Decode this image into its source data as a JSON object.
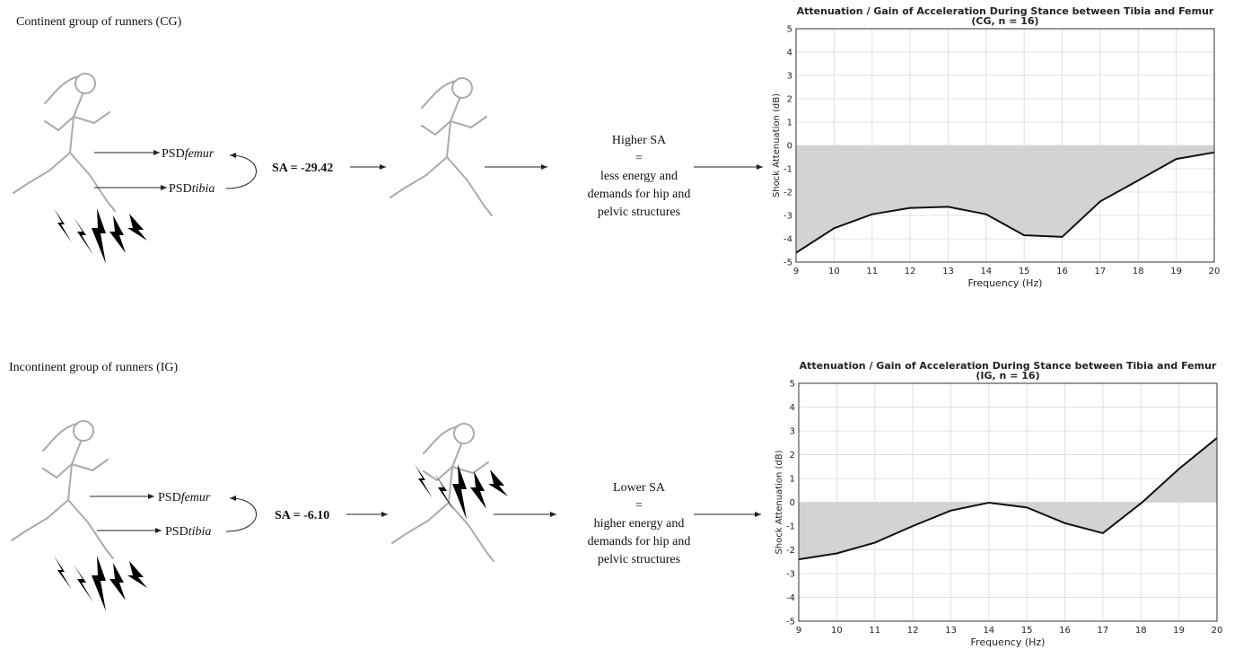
{
  "panels": [
    {
      "group_label": "Continent group of runners (CG)",
      "psd_top": [
        "PSD",
        "femur"
      ],
      "psd_bottom": [
        "PSD",
        "tibia"
      ],
      "sa": "SA = -29.42",
      "outcome": [
        "Higher SA",
        "=",
        "less energy and",
        "demands for hip and",
        "pelvic structures"
      ]
    },
    {
      "group_label": "Incontinent group of runners (IG)",
      "psd_top": [
        "PSD",
        "femur"
      ],
      "psd_bottom": [
        "PSD",
        "tibia"
      ],
      "sa": "SA = -6.10",
      "outcome": [
        "Lower SA",
        "=",
        "higher energy and",
        "demands for hip and",
        "pelvic structures"
      ]
    }
  ],
  "chart_data": [
    {
      "type": "area",
      "title": "Attenuation / Gain of Acceleration During Stance between Tibia and Femur",
      "subtitle": "(CG, n = 16)",
      "x_label": "Frequency (Hz)",
      "y_label": "Shock Attenuation (dB)",
      "x": [
        9,
        10,
        11,
        12,
        13,
        14,
        15,
        16,
        17,
        18,
        19,
        20
      ],
      "values": [
        -4.6,
        -3.55,
        -2.95,
        -2.68,
        -2.63,
        -2.95,
        -3.85,
        -3.92,
        -2.4,
        -1.5,
        -0.58,
        -0.3
      ],
      "color": "#111111",
      "fill_color": "#d3d3d3",
      "xlim": [
        9,
        20
      ],
      "xticks": [
        9,
        10,
        11,
        12,
        13,
        14,
        15,
        16,
        17,
        18,
        19,
        20
      ],
      "ylim": [
        -5,
        5
      ],
      "yticks": [
        -5,
        -4,
        -3,
        -2,
        -1,
        0,
        1,
        2,
        3,
        4,
        5
      ],
      "grid": true
    },
    {
      "type": "area",
      "title": "Attenuation / Gain of Acceleration During Stance between Tibia and Femur",
      "subtitle": "(IG, n = 16)",
      "x_label": "Frequency (Hz)",
      "y_label": "Shock Attenuation (dB)",
      "x": [
        9,
        10,
        11,
        12,
        13,
        14,
        15,
        16,
        17,
        18,
        19,
        20
      ],
      "values": [
        -2.4,
        -2.15,
        -1.7,
        -1.0,
        -0.35,
        -0.02,
        -0.22,
        -0.88,
        -1.3,
        -0.05,
        1.4,
        2.7
      ],
      "color": "#111111",
      "fill_color": "#d3d3d3",
      "xlim": [
        9,
        20
      ],
      "xticks": [
        9,
        10,
        11,
        12,
        13,
        14,
        15,
        16,
        17,
        18,
        19,
        20
      ],
      "ylim": [
        -5,
        5
      ],
      "yticks": [
        -5,
        -4,
        -3,
        -2,
        -1,
        0,
        1,
        2,
        3,
        4,
        5
      ],
      "grid": true
    }
  ]
}
